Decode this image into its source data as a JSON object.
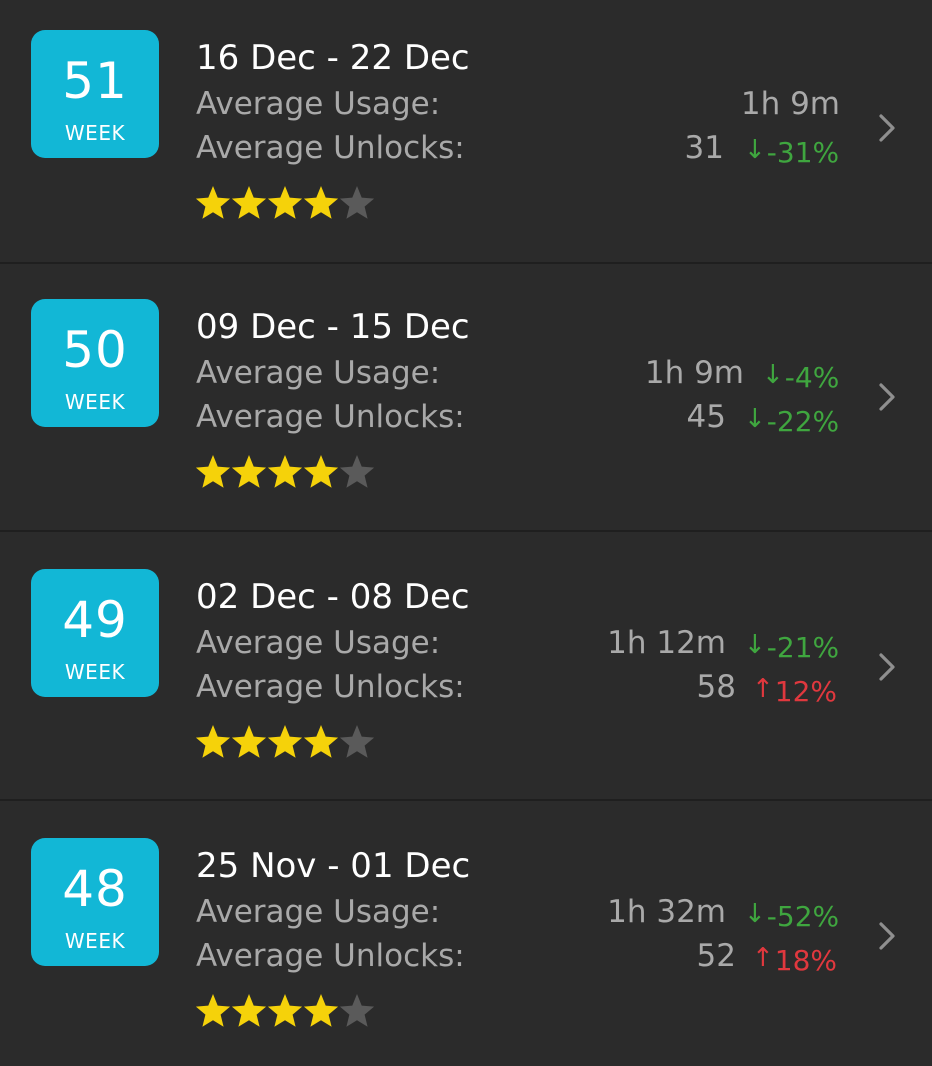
{
  "colors": {
    "background": "#2b2b2b",
    "badge": "#12b7d6",
    "star_filled": "#f5d20a",
    "star_empty": "#5a5a5a",
    "delta_down": "#3fa63f",
    "delta_up": "#e0383e"
  },
  "weeks": [
    {
      "week_number": "51",
      "week_label": "WEEK",
      "date_range": "16 Dec - 22 Dec",
      "usage_label": "Average Usage:",
      "usage_value": "1h 9m",
      "usage_delta": "",
      "usage_direction": "",
      "unlocks_label": "Average Unlocks:",
      "unlocks_value": "31",
      "unlocks_delta": "-31%",
      "unlocks_direction": "down",
      "rating": 4,
      "rating_max": 5
    },
    {
      "week_number": "50",
      "week_label": "WEEK",
      "date_range": "09 Dec - 15 Dec",
      "usage_label": "Average Usage:",
      "usage_value": "1h 9m",
      "usage_delta": "-4%",
      "usage_direction": "down",
      "unlocks_label": "Average Unlocks:",
      "unlocks_value": "45",
      "unlocks_delta": "-22%",
      "unlocks_direction": "down",
      "rating": 4,
      "rating_max": 5
    },
    {
      "week_number": "49",
      "week_label": "WEEK",
      "date_range": "02 Dec - 08 Dec",
      "usage_label": "Average Usage:",
      "usage_value": "1h 12m",
      "usage_delta": "-21%",
      "usage_direction": "down",
      "unlocks_label": "Average Unlocks:",
      "unlocks_value": "58",
      "unlocks_delta": "12%",
      "unlocks_direction": "up",
      "rating": 4,
      "rating_max": 5
    },
    {
      "week_number": "48",
      "week_label": "WEEK",
      "date_range": "25 Nov - 01 Dec",
      "usage_label": "Average Usage:",
      "usage_value": "1h 32m",
      "usage_delta": "-52%",
      "usage_direction": "down",
      "unlocks_label": "Average Unlocks:",
      "unlocks_value": "52",
      "unlocks_delta": "18%",
      "unlocks_direction": "up",
      "rating": 4,
      "rating_max": 5
    }
  ],
  "icons": {
    "chevron": "chevron-right-icon",
    "arrow_down": "arrow-down-icon",
    "arrow_up": "arrow-up-icon",
    "star": "star-icon"
  }
}
